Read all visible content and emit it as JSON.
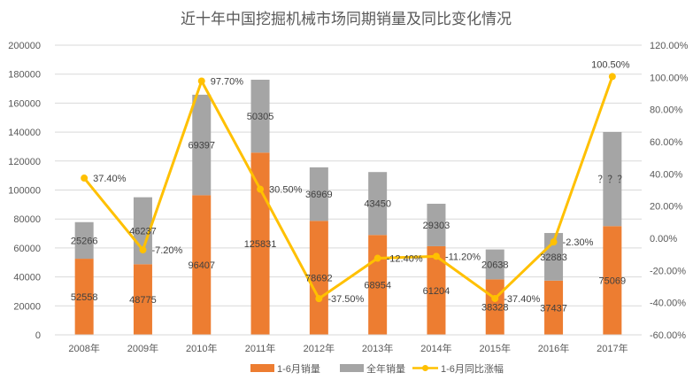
{
  "chart_data": {
    "type": "bar",
    "title": "近十年中国挖掘机械市场同期销量及同比变化情况",
    "categories": [
      "2008年",
      "2009年",
      "2010年",
      "2011年",
      "2012年",
      "2013年",
      "2014年",
      "2015年",
      "2016年",
      "2017年"
    ],
    "series": [
      {
        "name": "1-6月销量",
        "type": "bar",
        "stack": "sales",
        "color": "#ED7D31",
        "values": [
          52558,
          48775,
          96407,
          125831,
          78692,
          68954,
          61204,
          38328,
          37437,
          75069
        ],
        "labels": [
          "52558",
          "48775",
          "96407",
          "125831",
          "78692",
          "68954",
          "61204",
          "38328",
          "37437",
          "75069"
        ]
      },
      {
        "name": "全年销量",
        "type": "bar",
        "stack": "sales",
        "color": "#A5A5A5",
        "values": [
          25266,
          46237,
          69397,
          50305,
          36969,
          43450,
          29303,
          20638,
          32883,
          65000
        ],
        "labels": [
          "25266",
          "46237",
          "69397",
          "50305",
          "36969",
          "43450",
          "29303",
          "20638",
          "32883",
          "？？？"
        ]
      },
      {
        "name": "1-6月同比涨幅",
        "type": "line",
        "axis": "right",
        "color": "#FFC000",
        "values": [
          37.4,
          -7.2,
          97.7,
          30.5,
          -37.5,
          -12.4,
          -11.2,
          -37.4,
          -2.3,
          100.5
        ],
        "labels": [
          "37.40%",
          "-7.20%",
          "97.70%",
          "30.50%",
          "-37.50%",
          "-12.40%",
          "-11.20%",
          "-37.40%",
          "-2.30%",
          "100.50%"
        ]
      }
    ],
    "left_axis": {
      "range": [
        0,
        200000
      ],
      "ticks": [
        "0",
        "20000",
        "40000",
        "60000",
        "80000",
        "100000",
        "120000",
        "140000",
        "160000",
        "180000",
        "200000"
      ]
    },
    "right_axis": {
      "range": [
        -60,
        120
      ],
      "ticks": [
        "-60.00%",
        "-40.00%",
        "-20.00%",
        "0.00%",
        "20.00%",
        "40.00%",
        "60.00%",
        "80.00%",
        "100.00%",
        "120.00%"
      ]
    },
    "grid": true,
    "legend_position": "bottom"
  }
}
